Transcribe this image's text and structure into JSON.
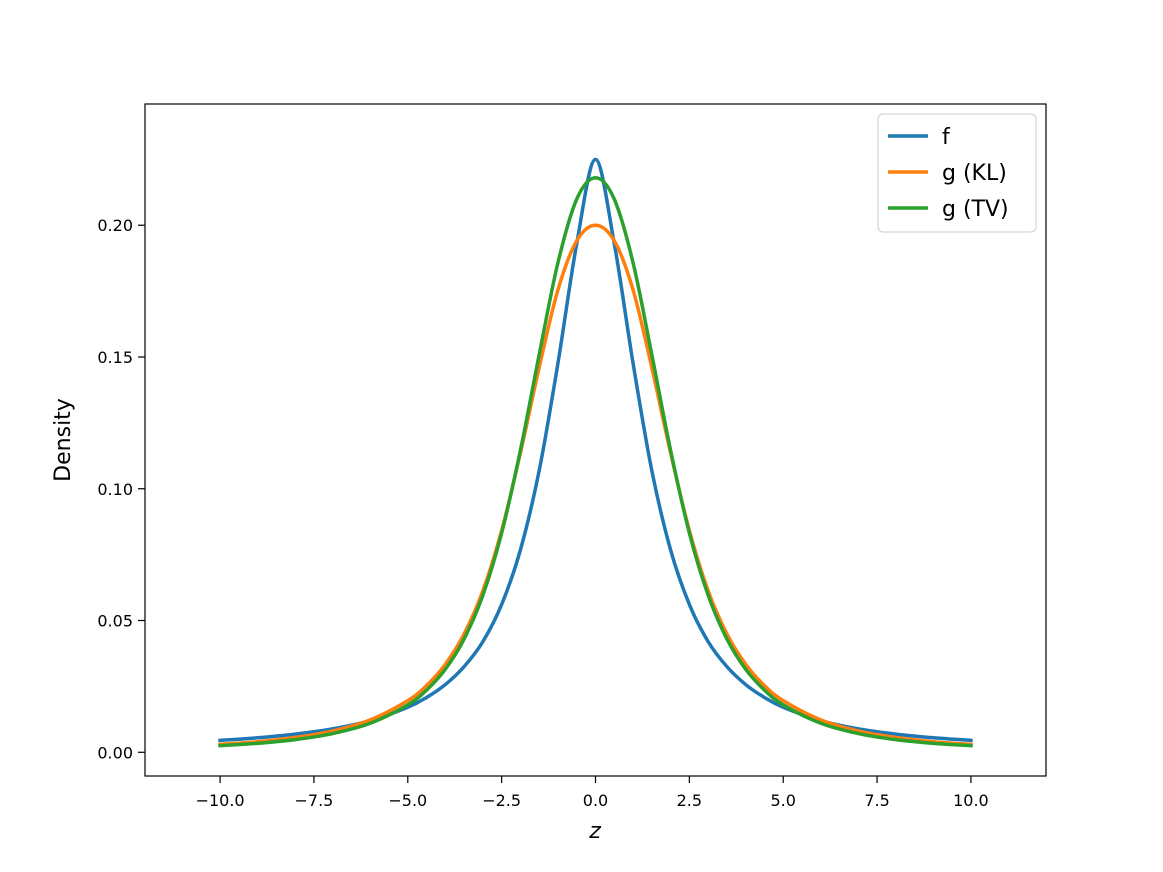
{
  "chart_data": {
    "type": "line",
    "title": "",
    "xlabel": "z",
    "ylabel": "Density",
    "xlim": [
      -12.0,
      12.0
    ],
    "ylim": [
      -0.009,
      0.246
    ],
    "xticks": [
      -10.0,
      -7.5,
      -5.0,
      -2.5,
      0.0,
      2.5,
      5.0,
      7.5,
      10.0
    ],
    "xtick_labels": [
      "−10.0",
      "−7.5",
      "−5.0",
      "−2.5",
      "0.0",
      "2.5",
      "5.0",
      "7.5",
      "10.0"
    ],
    "yticks": [
      0.0,
      0.05,
      0.1,
      0.15,
      0.2
    ],
    "ytick_labels": [
      "0.00",
      "0.05",
      "0.10",
      "0.15",
      "0.20"
    ],
    "grid": false,
    "legend_position": "top-right",
    "series": [
      {
        "name": "f",
        "color": "#1f77b4",
        "x": [
          -10,
          -9,
          -8,
          -7,
          -6,
          -5,
          -4.5,
          -4,
          -3.5,
          -3,
          -2.5,
          -2,
          -1.5,
          -1,
          -0.5,
          0,
          0.5,
          1,
          1.5,
          2,
          2.5,
          3,
          3.5,
          4,
          4.5,
          5,
          6,
          7,
          8,
          9,
          10
        ],
        "y": [
          0.0045,
          0.0055,
          0.0069,
          0.0089,
          0.012,
          0.0171,
          0.0208,
          0.0257,
          0.0325,
          0.042,
          0.0561,
          0.0768,
          0.1069,
          0.1477,
          0.193,
          0.225,
          0.193,
          0.1477,
          0.1069,
          0.0768,
          0.0561,
          0.042,
          0.0325,
          0.0257,
          0.0208,
          0.0171,
          0.012,
          0.0089,
          0.0069,
          0.0055,
          0.0045
        ]
      },
      {
        "name": "g (KL)",
        "color": "#ff7f0e",
        "x": [
          -10,
          -9,
          -8,
          -7,
          -6,
          -5,
          -4.5,
          -4,
          -3.5,
          -3,
          -2.5,
          -2,
          -1.5,
          -1,
          -0.5,
          0,
          0.5,
          1,
          1.5,
          2,
          2.5,
          3,
          3.5,
          4,
          4.5,
          5,
          6,
          7,
          8,
          9,
          10
        ],
        "y": [
          0.003,
          0.004,
          0.0056,
          0.0081,
          0.0123,
          0.0196,
          0.0253,
          0.0334,
          0.0449,
          0.0613,
          0.0842,
          0.1136,
          0.146,
          0.1755,
          0.1941,
          0.2,
          0.1941,
          0.1755,
          0.146,
          0.1136,
          0.0842,
          0.0613,
          0.0449,
          0.0334,
          0.0253,
          0.0196,
          0.0123,
          0.0081,
          0.0056,
          0.004,
          0.003
        ]
      },
      {
        "name": "g (TV)",
        "color": "#2ca02c",
        "x": [
          -10,
          -9,
          -8,
          -7,
          -6,
          -5,
          -4.5,
          -4,
          -3.5,
          -3,
          -2.5,
          -2,
          -1.5,
          -1,
          -0.5,
          0,
          0.5,
          1,
          1.5,
          2,
          2.5,
          3,
          3.5,
          4,
          4.5,
          5,
          6,
          7,
          8,
          9,
          10
        ],
        "y": [
          0.0025,
          0.0034,
          0.0048,
          0.0071,
          0.011,
          0.018,
          0.0236,
          0.0315,
          0.043,
          0.0596,
          0.0832,
          0.1146,
          0.1509,
          0.1858,
          0.2099,
          0.218,
          0.2099,
          0.1858,
          0.1509,
          0.1146,
          0.0832,
          0.0596,
          0.043,
          0.0315,
          0.0236,
          0.018,
          0.011,
          0.0071,
          0.0048,
          0.0034,
          0.0025
        ]
      }
    ]
  }
}
